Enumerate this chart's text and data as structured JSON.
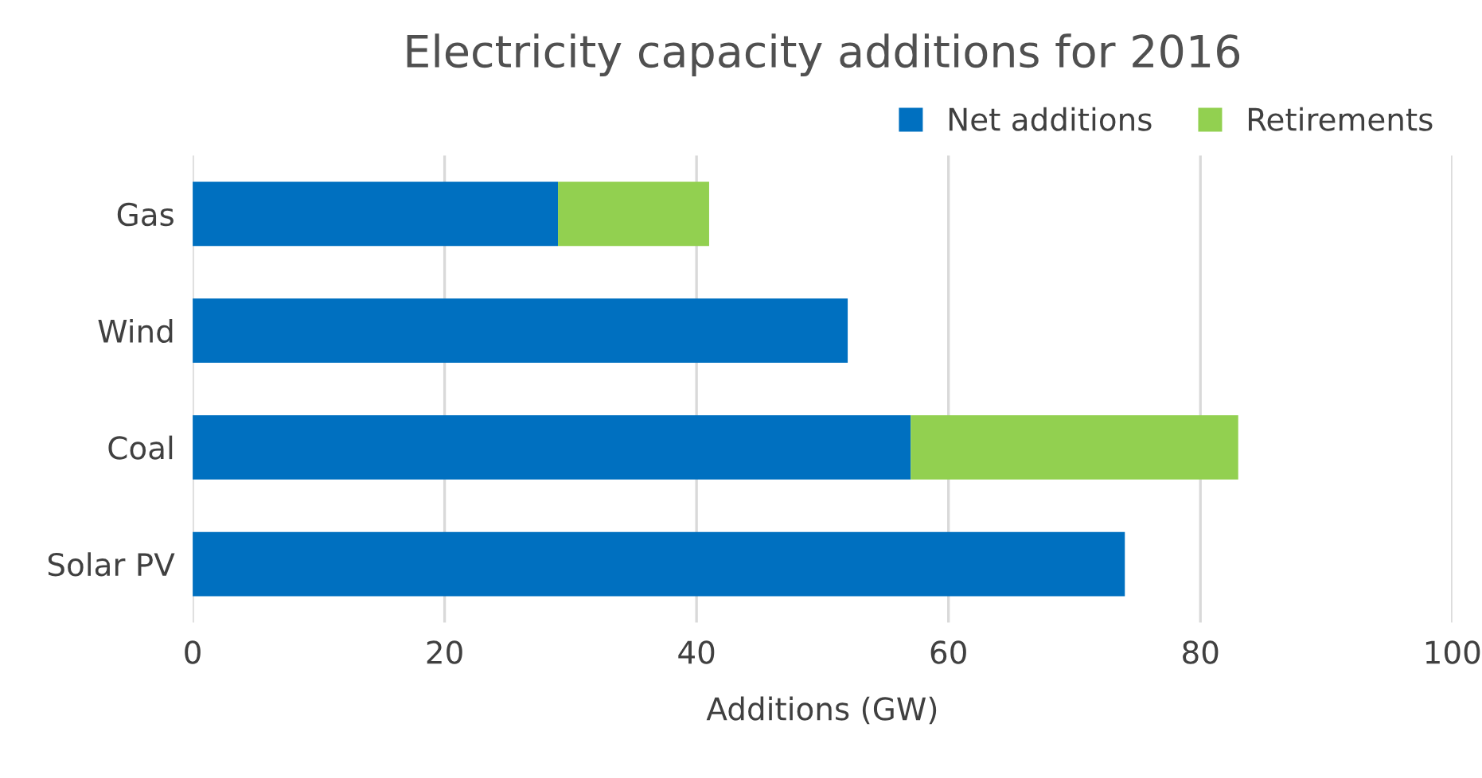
{
  "chart_data": {
    "type": "bar",
    "orientation": "horizontal",
    "stacked": true,
    "title": "Electricity capacity additions for 2016",
    "xlabel": "Additions (GW)",
    "categories": [
      "Gas",
      "Wind",
      "Coal",
      "Solar PV"
    ],
    "series": [
      {
        "name": "Net additions",
        "color": "#0070c0",
        "values": [
          29,
          52,
          57,
          74
        ]
      },
      {
        "name": "Retirements",
        "color": "#92d050",
        "values": [
          12,
          null,
          26,
          null
        ]
      }
    ],
    "xlim": [
      0,
      100
    ],
    "xticks": [
      0,
      20,
      40,
      60,
      80,
      100
    ],
    "grid": "x",
    "legend": "top right"
  }
}
